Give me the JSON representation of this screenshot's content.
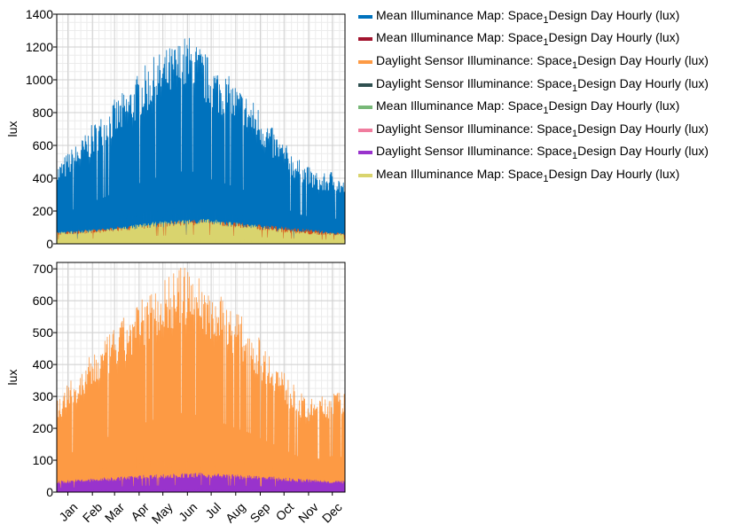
{
  "chart_data": [
    {
      "type": "area",
      "ylabel": "lux",
      "ylim": [
        0,
        1400
      ],
      "yticks": [
        0,
        200,
        400,
        600,
        800,
        1000,
        1200,
        1400
      ],
      "xlim": [
        1,
        365
      ],
      "grid": true,
      "series": [
        {
          "name": "Mean Illuminance Map: Space1Design Day Hourly (lux)",
          "color": "#0072bd",
          "x": [
            1,
            15,
            32,
            46,
            60,
            74,
            91,
            105,
            121,
            135,
            152,
            166,
            182,
            196,
            213,
            227,
            244,
            258,
            274,
            288,
            305,
            319,
            335,
            349,
            365
          ],
          "values": [
            480,
            560,
            640,
            730,
            800,
            880,
            950,
            1050,
            1130,
            1180,
            1230,
            1280,
            1210,
            1120,
            1050,
            980,
            900,
            830,
            700,
            620,
            520,
            470,
            420,
            450,
            380
          ]
        },
        {
          "name": "Mean Illuminance Map: Space1Design Day Hourly (lux)",
          "color": "#d95319",
          "x": [
            1,
            91,
            182,
            274,
            365
          ],
          "values": [
            70,
            110,
            150,
            110,
            65
          ]
        },
        {
          "name": "Mean Illuminance Map: Space1Design Day Hourly (lux)",
          "color": "#d9d46e",
          "x": [
            1,
            32,
            60,
            91,
            121,
            152,
            182,
            213,
            244,
            274,
            305,
            335,
            365
          ],
          "values": [
            70,
            80,
            90,
            110,
            130,
            145,
            155,
            140,
            120,
            100,
            80,
            70,
            65
          ]
        }
      ]
    },
    {
      "type": "area",
      "ylabel": "lux",
      "ylim": [
        0,
        720
      ],
      "yticks": [
        0,
        100,
        200,
        300,
        400,
        500,
        600,
        700
      ],
      "xlim": [
        1,
        365
      ],
      "grid": true,
      "x_tick_labels": [
        "Jan",
        "Feb",
        "Mar",
        "Apr",
        "May",
        "Jun",
        "Jul",
        "Aug",
        "Sep",
        "Oct",
        "Nov",
        "Dec"
      ],
      "x_tick_days": [
        15,
        46,
        74,
        105,
        135,
        166,
        196,
        227,
        258,
        288,
        319,
        349
      ],
      "series": [
        {
          "name": "Daylight Sensor Illuminance: Space1Design Day Hourly (lux)",
          "color": "#fd9a44",
          "x": [
            1,
            15,
            32,
            46,
            60,
            74,
            91,
            105,
            121,
            135,
            152,
            166,
            182,
            196,
            213,
            227,
            244,
            258,
            274,
            288,
            305,
            319,
            335,
            349,
            365
          ],
          "values": [
            300,
            340,
            380,
            440,
            470,
            520,
            560,
            600,
            640,
            680,
            700,
            710,
            680,
            650,
            610,
            570,
            530,
            480,
            430,
            380,
            320,
            290,
            300,
            320,
            310
          ]
        },
        {
          "name": "Daylight Sensor Illuminance: Space1Design Day Hourly (lux)",
          "color": "#9933cc",
          "x": [
            1,
            32,
            60,
            91,
            121,
            152,
            182,
            213,
            244,
            274,
            305,
            335,
            365
          ],
          "values": [
            35,
            40,
            45,
            50,
            55,
            58,
            60,
            57,
            52,
            48,
            42,
            38,
            35
          ]
        }
      ]
    }
  ],
  "legend": [
    {
      "prefix": "Mean Illuminance Map: Space",
      "sub": "1",
      "suffix": "Design Day Hourly (lux)",
      "color": "#0072bd"
    },
    {
      "prefix": "Mean Illuminance Map: Space",
      "sub": "1",
      "suffix": "Design Day Hourly (lux)",
      "color": "#a2142f"
    },
    {
      "prefix": "Daylight Sensor Illuminance: Space",
      "sub": "1",
      "suffix": "Design Day Hourly (lux)",
      "color": "#fd9a44"
    },
    {
      "prefix": "Daylight Sensor Illuminance: Space",
      "sub": "1",
      "suffix": "Design Day Hourly (lux)",
      "color": "#2f5050"
    },
    {
      "prefix": "Mean Illuminance Map: Space",
      "sub": "1",
      "suffix": "Design Day Hourly (lux)",
      "color": "#78b878"
    },
    {
      "prefix": "Daylight Sensor Illuminance: Space",
      "sub": "1",
      "suffix": "Design Day Hourly (lux)",
      "color": "#f07c9e"
    },
    {
      "prefix": "Daylight Sensor Illuminance: Space",
      "sub": "1",
      "suffix": "Design Day Hourly (lux)",
      "color": "#9933cc"
    },
    {
      "prefix": "Mean Illuminance Map: Space",
      "sub": "1",
      "suffix": "Design Day Hourly (lux)",
      "color": "#d9d46e"
    }
  ]
}
